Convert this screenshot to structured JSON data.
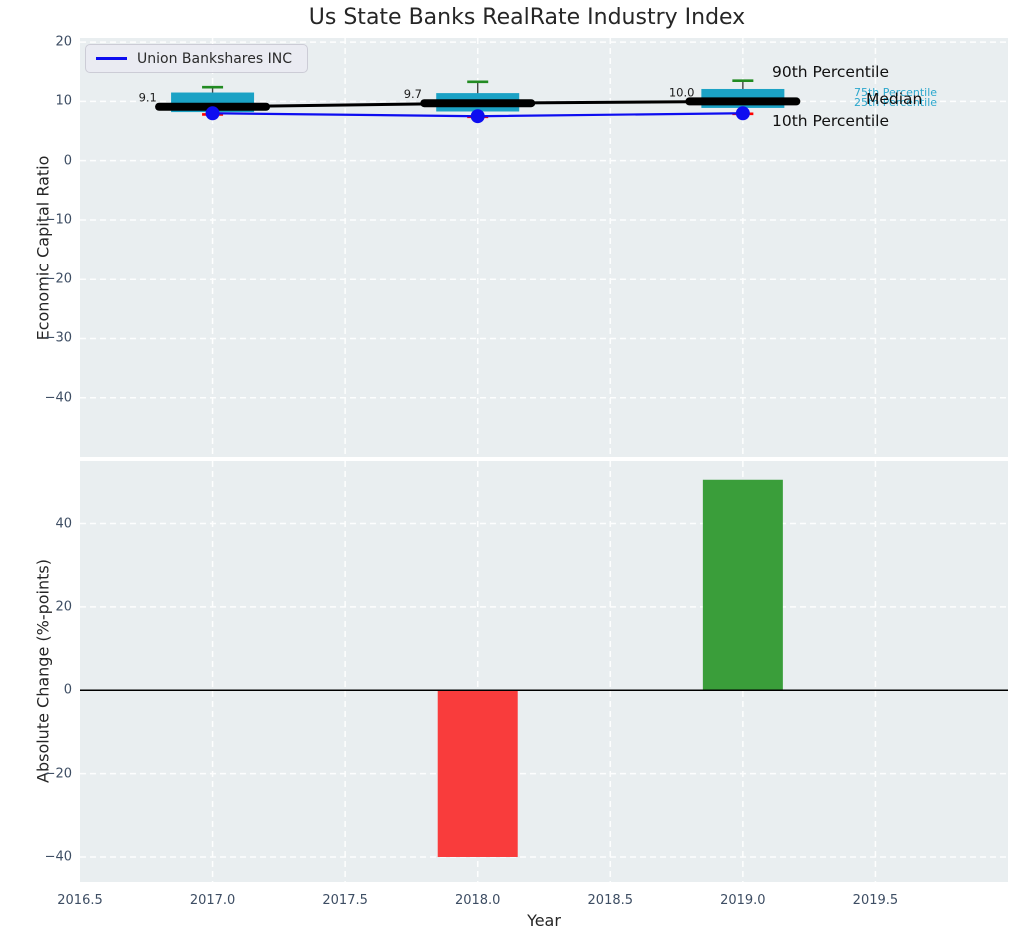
{
  "title": "Us State Banks RealRate Industry Index",
  "top_chart": {
    "ylabel": "Economic Capital Ratio",
    "legend_label": "Union Bankshares INC",
    "annotations": {
      "p90": "90th Percentile",
      "p75": "75th Percentile",
      "p25": "25th Percentile",
      "median": "Median",
      "p10": "10th Percentile"
    }
  },
  "bottom_chart": {
    "ylabel": "Absolute Change (%-points)",
    "xlabel": "Year"
  },
  "chart_data": [
    {
      "type": "boxplot",
      "title": "Us State Banks RealRate Industry Index",
      "ylabel": "Economic Capital Ratio",
      "x": [
        2017,
        2018,
        2019
      ],
      "xlim": [
        2016.5,
        2020.0
      ],
      "ylim": [
        -50,
        20.7
      ],
      "yticks": [
        20,
        10,
        0,
        -10,
        -20,
        -30,
        -40
      ],
      "grid": true,
      "legend_position": "upper left",
      "series": [
        {
          "name": "90th Percentile",
          "values": [
            12.4,
            13.3,
            13.5
          ]
        },
        {
          "name": "75th Percentile",
          "values": [
            11.5,
            11.4,
            12.1
          ]
        },
        {
          "name": "Median",
          "values": [
            9.1,
            9.7,
            10.0
          ]
        },
        {
          "name": "25th Percentile",
          "values": [
            8.2,
            8.3,
            8.9
          ]
        },
        {
          "name": "10th Percentile",
          "values": [
            7.8,
            7.4,
            7.9
          ]
        },
        {
          "name": "Union Bankshares INC",
          "values": [
            8.0,
            7.5,
            8.0
          ]
        }
      ],
      "median_labels": [
        "9.1",
        "9.7",
        "10.0"
      ]
    },
    {
      "type": "bar",
      "ylabel": "Absolute Change (%-points)",
      "xlabel": "Year",
      "x": [
        2018,
        2019
      ],
      "values": [
        -40,
        50.5
      ],
      "bar_colors": [
        "#f93c3c",
        "#3a9e3a"
      ],
      "xlim": [
        2016.5,
        2020.0
      ],
      "ylim": [
        -46,
        55
      ],
      "yticks": [
        40,
        20,
        0,
        -20,
        -40
      ],
      "xticks": [
        2016.5,
        2017.0,
        2017.5,
        2018.0,
        2018.5,
        2019.0,
        2019.5
      ],
      "grid": true
    }
  ],
  "colors": {
    "plot_bg": "#e9eef0",
    "grid": "#ffffff",
    "box_fill": "#1ba2c5",
    "cap_high": "#228b22",
    "cap_low": "#ff0000",
    "median": "#000000",
    "company_line": "#0d0df0",
    "whisker": "#444444",
    "bar_negative": "#f93c3c",
    "bar_positive": "#3a9e3a",
    "tick_label": "#3d4d63",
    "cyan_label": "#2ba7cd",
    "value_label": "#1d1d1d"
  }
}
